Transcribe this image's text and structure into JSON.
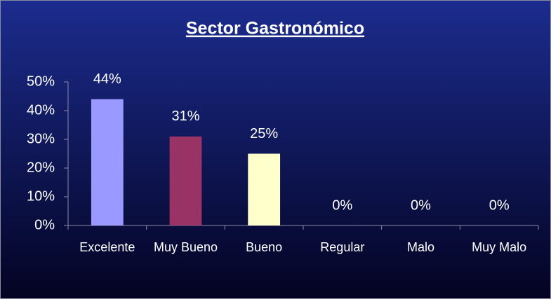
{
  "chart_data": {
    "type": "bar",
    "title": "Sector Gastronómico",
    "categories": [
      "Excelente",
      "Muy Bueno",
      "Bueno",
      "Regular",
      "Malo",
      "Muy Malo"
    ],
    "values": [
      44,
      31,
      25,
      0,
      0,
      0
    ],
    "value_labels": [
      "44%",
      "31%",
      "25%",
      "0%",
      "0%",
      "0%"
    ],
    "colors": [
      "#9999ff",
      "#993366",
      "#ffffcc",
      "#9999ff",
      "#9999ff",
      "#9999ff"
    ],
    "ylim": [
      0,
      50
    ],
    "yticks": [
      {
        "value": 0,
        "label": "0%"
      },
      {
        "value": 10,
        "label": "10%"
      },
      {
        "value": 20,
        "label": "20%"
      },
      {
        "value": 30,
        "label": "30%"
      },
      {
        "value": 40,
        "label": "40%"
      },
      {
        "value": 50,
        "label": "50%"
      }
    ]
  }
}
